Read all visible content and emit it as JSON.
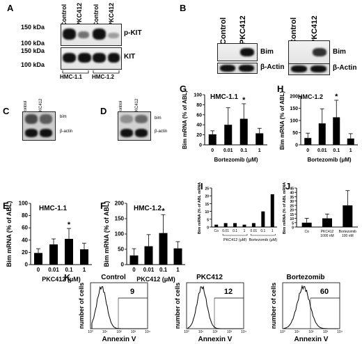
{
  "panels": {
    "A": {
      "label": "A",
      "columns": [
        "Control",
        "PKC412",
        "Control",
        "PKC412"
      ],
      "kda_top": [
        "150 kDa",
        "100 kDa"
      ],
      "kda_bottom": [
        "150 kDa",
        "100 kDa"
      ],
      "blot_top": "p-KIT",
      "blot_bottom": "KIT",
      "groups": [
        "HMC-1.1",
        "HMC-1.2"
      ]
    },
    "B": {
      "label": "B",
      "left": {
        "columns": [
          "Control",
          "PKC412"
        ],
        "bands": [
          "Bim",
          "β-Actin"
        ]
      },
      "right": {
        "columns": [
          "Control",
          "PKC412"
        ],
        "bands": [
          "Bim",
          "β-Actin"
        ]
      }
    },
    "C": {
      "label": "C",
      "columns": [
        "Control",
        "PKC412"
      ],
      "bands": [
        "bim",
        "β-actin"
      ]
    },
    "D": {
      "label": "D",
      "columns": [
        "Control",
        "PKC412"
      ],
      "bands": [
        "bim",
        "β-actin"
      ]
    },
    "E": {
      "label": "E",
      "title": "HMC-1.1"
    },
    "F": {
      "label": "F",
      "title": "HMC-1.2"
    },
    "G": {
      "label": "G",
      "title": "HMC-1.1"
    },
    "H": {
      "label": "H",
      "title": "HMC-1.2"
    },
    "I": {
      "label": "I"
    },
    "J": {
      "label": "J"
    },
    "K": {
      "label": "K",
      "histograms": [
        {
          "title": "Control",
          "value": "9",
          "xlabel": "Annexin V",
          "ylabel": "number of cells"
        },
        {
          "title": "PKC412",
          "value": "12",
          "xlabel": "Annexin V",
          "ylabel": "number of cells"
        },
        {
          "title": "Bortezomib",
          "value": "60",
          "xlabel": "Annexin V",
          "ylabel": "number of cells"
        }
      ],
      "xticks": [
        "10⁰",
        "10¹",
        "10²",
        "10³",
        "10⁴"
      ]
    }
  },
  "chart_data": [
    {
      "id": "E",
      "type": "bar",
      "title": "HMC-1.1",
      "categories": [
        "0",
        "0.01",
        "0.1",
        "1"
      ],
      "values": [
        19,
        33,
        42,
        25
      ],
      "errors": [
        7,
        9,
        17,
        10
      ],
      "significant": [
        false,
        false,
        true,
        false
      ],
      "xlabel": "PKC412 (μM)",
      "ylabel": "Bim mRNA (% of ABL)",
      "ylim": [
        0,
        100
      ],
      "yticks": [
        0,
        20,
        40,
        60,
        80,
        100
      ]
    },
    {
      "id": "F",
      "type": "bar",
      "title": "HMC-1.2",
      "categories": [
        "0",
        "0.01",
        "0.1",
        "1"
      ],
      "values": [
        30,
        60,
        103,
        53
      ],
      "errors": [
        22,
        38,
        60,
        22
      ],
      "significant": [
        false,
        false,
        true,
        false
      ],
      "xlabel": "PKC412 (μM)",
      "ylabel": "Bim mRNA (% of ABL)",
      "ylim": [
        0,
        200
      ],
      "yticks": [
        0,
        50,
        100,
        150,
        200
      ]
    },
    {
      "id": "G",
      "type": "bar",
      "title": "HMC-1.1",
      "categories": [
        "0",
        "0.01",
        "0.1",
        "1"
      ],
      "values": [
        21,
        40,
        52,
        23
      ],
      "errors": [
        7,
        34,
        30,
        10
      ],
      "significant": [
        false,
        false,
        true,
        false
      ],
      "xlabel": "Bortezomib (μM)",
      "ylabel": "Bim mRNA (% of ABL)",
      "ylim": [
        0,
        100
      ],
      "yticks": [
        0,
        20,
        40,
        60,
        80,
        100
      ]
    },
    {
      "id": "H",
      "type": "bar",
      "title": "HMC-1.2",
      "categories": [
        "0",
        "0.01",
        "0.1",
        "1"
      ],
      "values": [
        28,
        88,
        113,
        26
      ],
      "errors": [
        20,
        60,
        70,
        20
      ],
      "significant": [
        false,
        false,
        true,
        false
      ],
      "xlabel": "Bortezomib (μM)",
      "ylabel": "Bim mRNA (% of ABL)",
      "ylim": [
        0,
        200
      ],
      "yticks": [
        0,
        50,
        100,
        150,
        200
      ]
    },
    {
      "id": "I",
      "type": "bar",
      "categories": [
        "Co",
        "0.01",
        "0.1",
        "1",
        "0.01",
        "0.1",
        "1"
      ],
      "values": [
        1.5,
        2.5,
        2.5,
        1.5,
        2.5,
        10,
        21
      ],
      "errors": [
        0,
        0,
        0,
        0,
        0,
        0,
        0
      ],
      "groups": [
        {
          "label": "PKC412 (μM)",
          "from": 1,
          "to": 3
        },
        {
          "label": "Bortezomib (μM)",
          "from": 4,
          "to": 6
        }
      ],
      "ylabel": "Bim mRNA (% of ABL mRNA)",
      "ylim": [
        0,
        25
      ],
      "yticks": [
        0,
        5,
        10,
        15,
        20,
        25
      ]
    },
    {
      "id": "J",
      "type": "bar",
      "categories": [
        "Co",
        "PKC412 1000 nM",
        "Bortezomib 100 nM"
      ],
      "values": [
        5,
        10,
        25
      ],
      "errors": [
        5,
        5,
        17
      ],
      "ylabel": "Bim mRNA (% of ABL mRNA)",
      "ylim": [
        0,
        45
      ],
      "yticks": [
        0,
        5,
        10,
        15,
        20,
        25,
        30,
        35,
        40,
        45
      ]
    }
  ]
}
